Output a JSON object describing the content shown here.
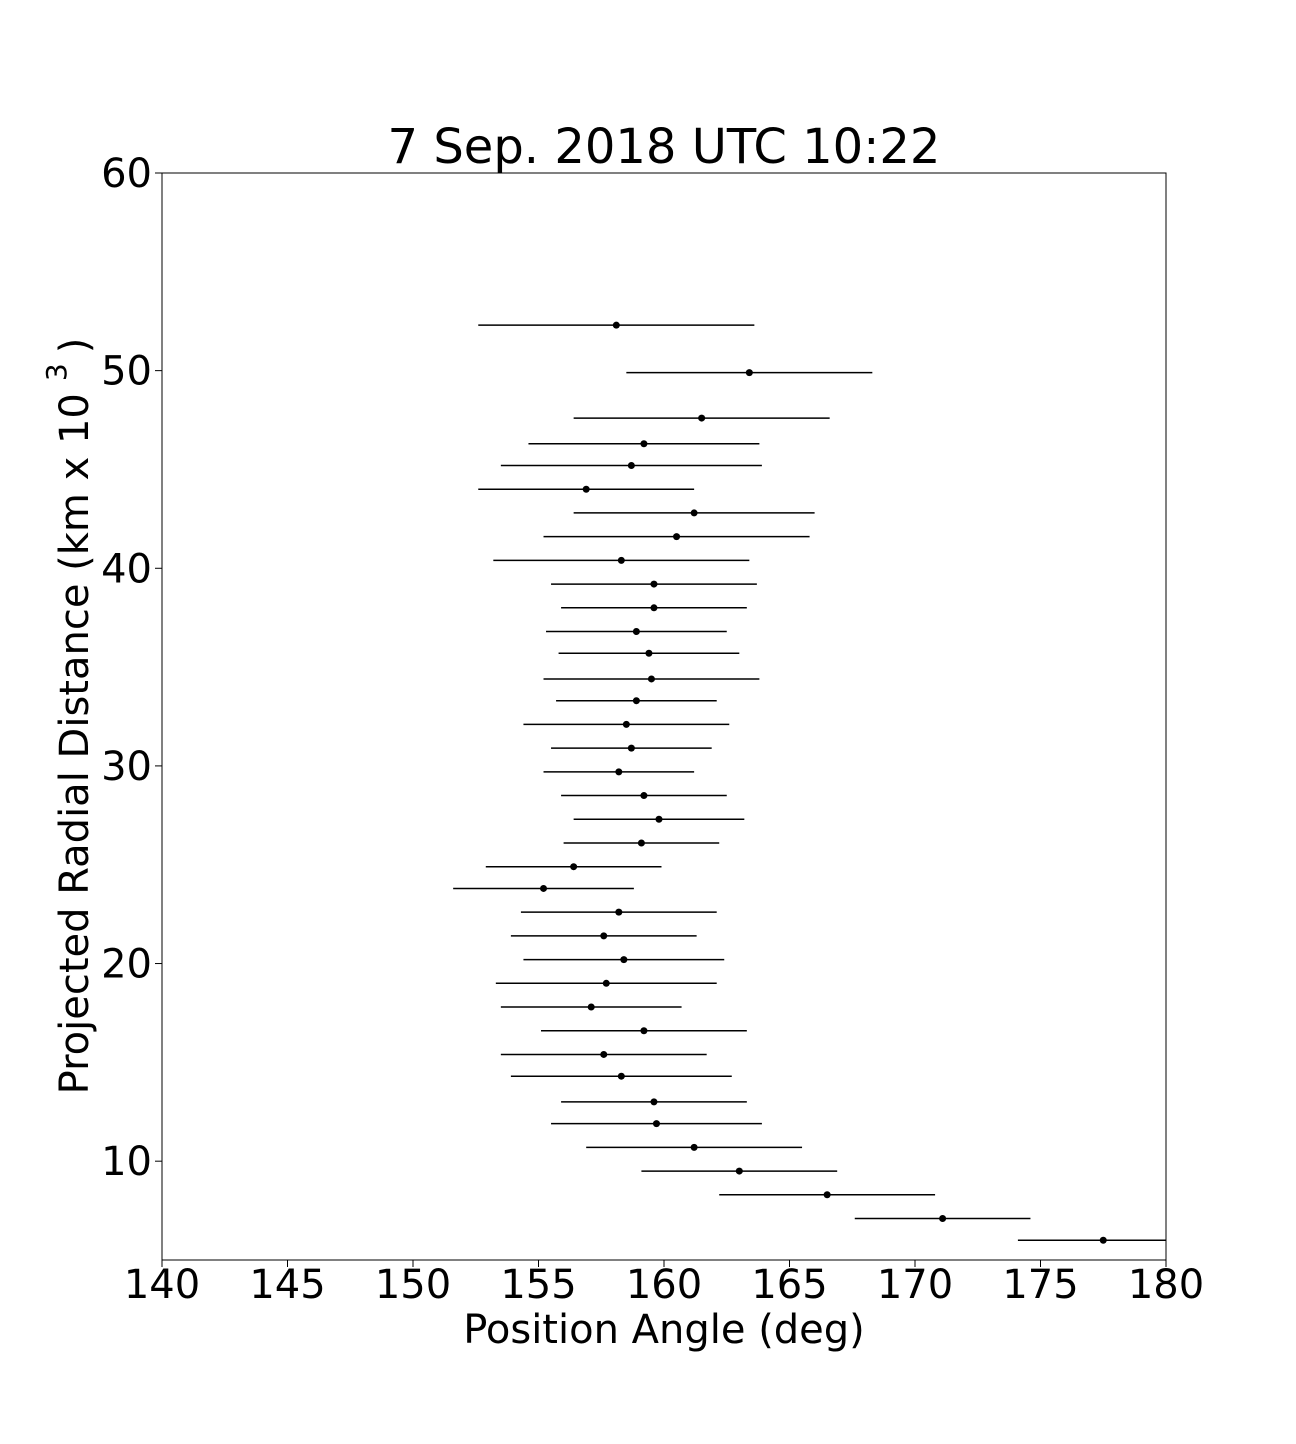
{
  "chart_data": {
    "type": "scatter",
    "title": "7 Sep. 2018 UTC 10:22",
    "xlabel": "Position Angle (deg)",
    "ylabel": "Projected Radial Distance (km x 10",
    "ylabel_superscript": "3",
    "ylabel_end": ")",
    "xlim": [
      140,
      180
    ],
    "xticks": [
      140,
      145,
      150,
      155,
      160,
      165,
      170,
      175,
      180
    ],
    "ylim": [
      5,
      60
    ],
    "yticks": [
      10,
      20,
      30,
      40,
      50,
      60
    ],
    "series": [
      {
        "color": "#000000",
        "x": [
          158.1,
          163.4,
          161.5,
          159.2,
          158.7,
          156.9,
          161.2,
          160.5,
          158.3,
          159.6,
          159.6,
          158.9,
          159.4,
          159.5,
          158.9,
          158.5,
          158.7,
          158.2,
          159.2,
          159.8,
          159.1,
          156.4,
          155.2,
          158.2,
          157.6,
          158.4,
          157.7,
          157.1,
          159.2,
          157.6,
          158.3,
          159.6,
          159.7,
          161.2,
          163.0,
          166.5,
          171.1,
          177.5
        ],
        "values": [
          52.3,
          49.9,
          47.6,
          46.3,
          45.2,
          44.0,
          42.8,
          41.6,
          40.4,
          39.2,
          38.0,
          36.8,
          35.7,
          34.4,
          33.3,
          32.1,
          30.9,
          29.7,
          28.5,
          27.3,
          26.1,
          24.9,
          23.8,
          22.6,
          21.4,
          20.2,
          19.0,
          17.8,
          16.6,
          15.4,
          14.3,
          13.0,
          11.9,
          10.7,
          9.5,
          8.3,
          7.1,
          6.0
        ],
        "xerr": [
          5.5,
          4.9,
          5.1,
          4.6,
          5.2,
          4.3,
          4.8,
          5.3,
          5.1,
          4.1,
          3.7,
          3.6,
          3.6,
          4.3,
          3.2,
          4.1,
          3.2,
          3.0,
          3.3,
          3.4,
          3.1,
          3.5,
          3.6,
          3.9,
          3.7,
          4.0,
          4.4,
          3.6,
          4.1,
          4.1,
          4.4,
          3.7,
          4.2,
          4.3,
          3.9,
          4.3,
          3.5,
          3.4
        ]
      }
    ]
  }
}
